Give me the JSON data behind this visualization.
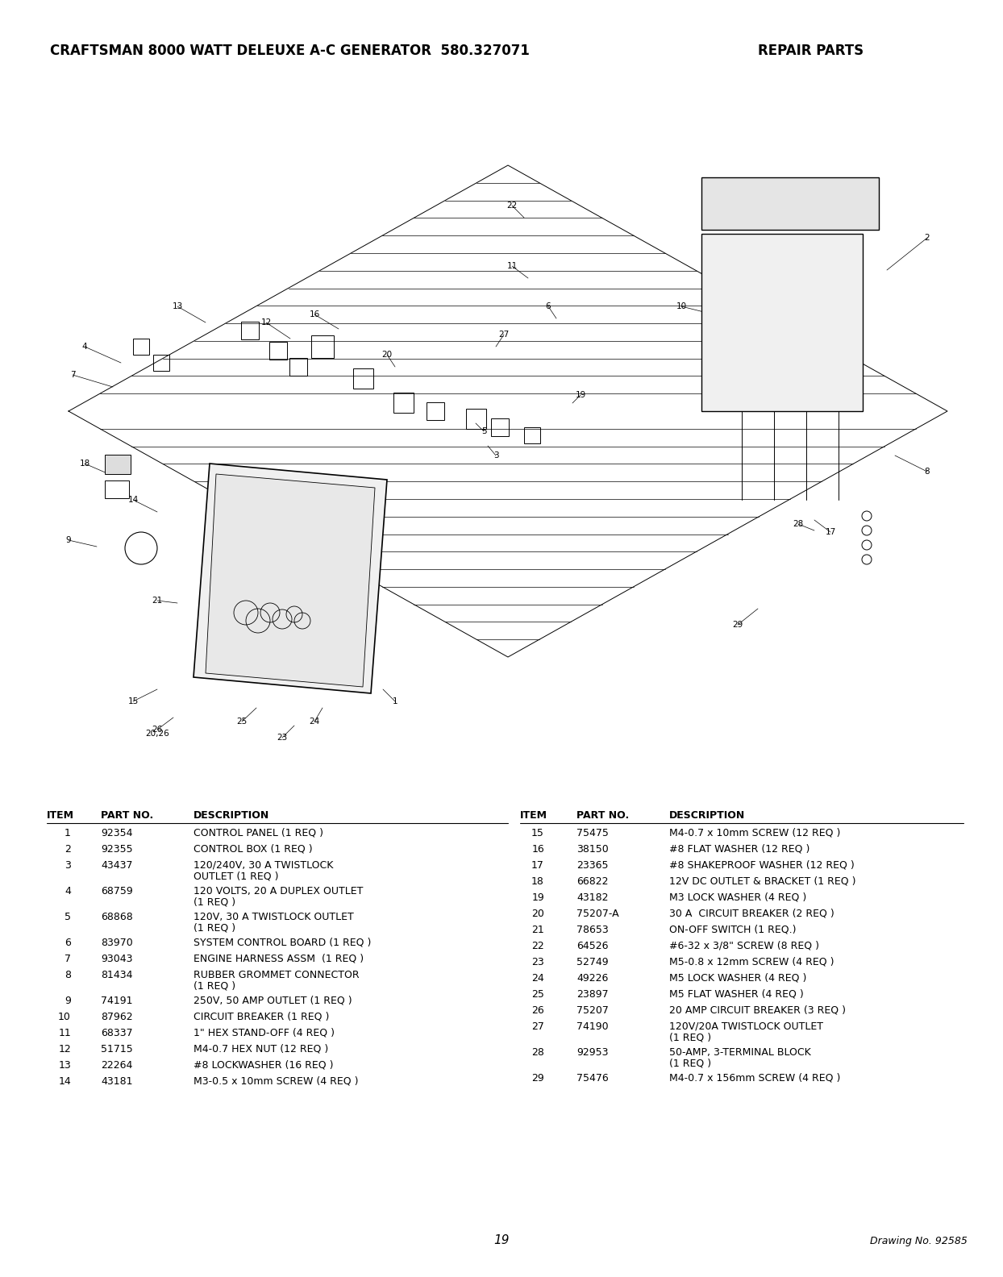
{
  "title_left": "CRAFTSMAN 8000 WATT DELEUXE A-C GENERATOR  580.327071",
  "title_right": "REPAIR PARTS",
  "page_number": "19",
  "drawing_number": "Drawing No. 92585",
  "left_table": [
    [
      "1",
      "92354",
      "CONTROL PANEL (1 REQ )"
    ],
    [
      "2",
      "92355",
      "CONTROL BOX (1 REQ )"
    ],
    [
      "3",
      "43437",
      "120/240V, 30 A TWISTLOCK\nOUTLET (1 REQ )"
    ],
    [
      "4",
      "68759",
      "120 VOLTS, 20 A DUPLEX OUTLET\n(1 REQ )"
    ],
    [
      "5",
      "68868",
      "120V, 30 A TWISTLOCK OUTLET\n(1 REQ )"
    ],
    [
      "6",
      "83970",
      "SYSTEM CONTROL BOARD (1 REQ )"
    ],
    [
      "7",
      "93043",
      "ENGINE HARNESS ASSM  (1 REQ )"
    ],
    [
      "8",
      "81434",
      "RUBBER GROMMET CONNECTOR\n(1 REQ )"
    ],
    [
      "9",
      "74191",
      "250V, 50 AMP OUTLET (1 REQ )"
    ],
    [
      "10",
      "87962",
      "CIRCUIT BREAKER (1 REQ )"
    ],
    [
      "11",
      "68337",
      "1\" HEX STAND-OFF (4 REQ )"
    ],
    [
      "12",
      "51715",
      "M4-0.7 HEX NUT (12 REQ )"
    ],
    [
      "13",
      "22264",
      "#8 LOCKWASHER (16 REQ )"
    ],
    [
      "14",
      "43181",
      "M3-0.5 x 10mm SCREW (4 REQ )"
    ]
  ],
  "right_table": [
    [
      "15",
      "75475",
      "M4-0.7 x 10mm SCREW (12 REQ )"
    ],
    [
      "16",
      "38150",
      "#8 FLAT WASHER (12 REQ )"
    ],
    [
      "17",
      "23365",
      "#8 SHAKEPROOF WASHER (12 REQ )"
    ],
    [
      "18",
      "66822",
      "12V DC OUTLET & BRACKET (1 REQ )"
    ],
    [
      "19",
      "43182",
      "M3 LOCK WASHER (4 REQ )"
    ],
    [
      "20",
      "75207-A",
      "30 A  CIRCUIT BREAKER (2 REQ )"
    ],
    [
      "21",
      "78653",
      "ON-OFF SWITCH (1 REQ.)"
    ],
    [
      "22",
      "64526",
      "#6-32 x 3/8\" SCREW (8 REQ )"
    ],
    [
      "23",
      "52749",
      "M5-0.8 x 12mm SCREW (4 REQ )"
    ],
    [
      "24",
      "49226",
      "M5 LOCK WASHER (4 REQ )"
    ],
    [
      "25",
      "23897",
      "M5 FLAT WASHER (4 REQ )"
    ],
    [
      "26",
      "75207",
      "20 AMP CIRCUIT BREAKER (3 REQ )"
    ],
    [
      "27",
      "74190",
      "120V/20A TWISTLOCK OUTLET\n(1 REQ )"
    ],
    [
      "28",
      "92953",
      "50-AMP, 3-TERMINAL BLOCK\n(1 REQ )"
    ],
    [
      "29",
      "75476",
      "M4-0.7 x 156mm SCREW (4 REQ )"
    ]
  ],
  "background_color": "#ffffff",
  "text_color": "#000000"
}
